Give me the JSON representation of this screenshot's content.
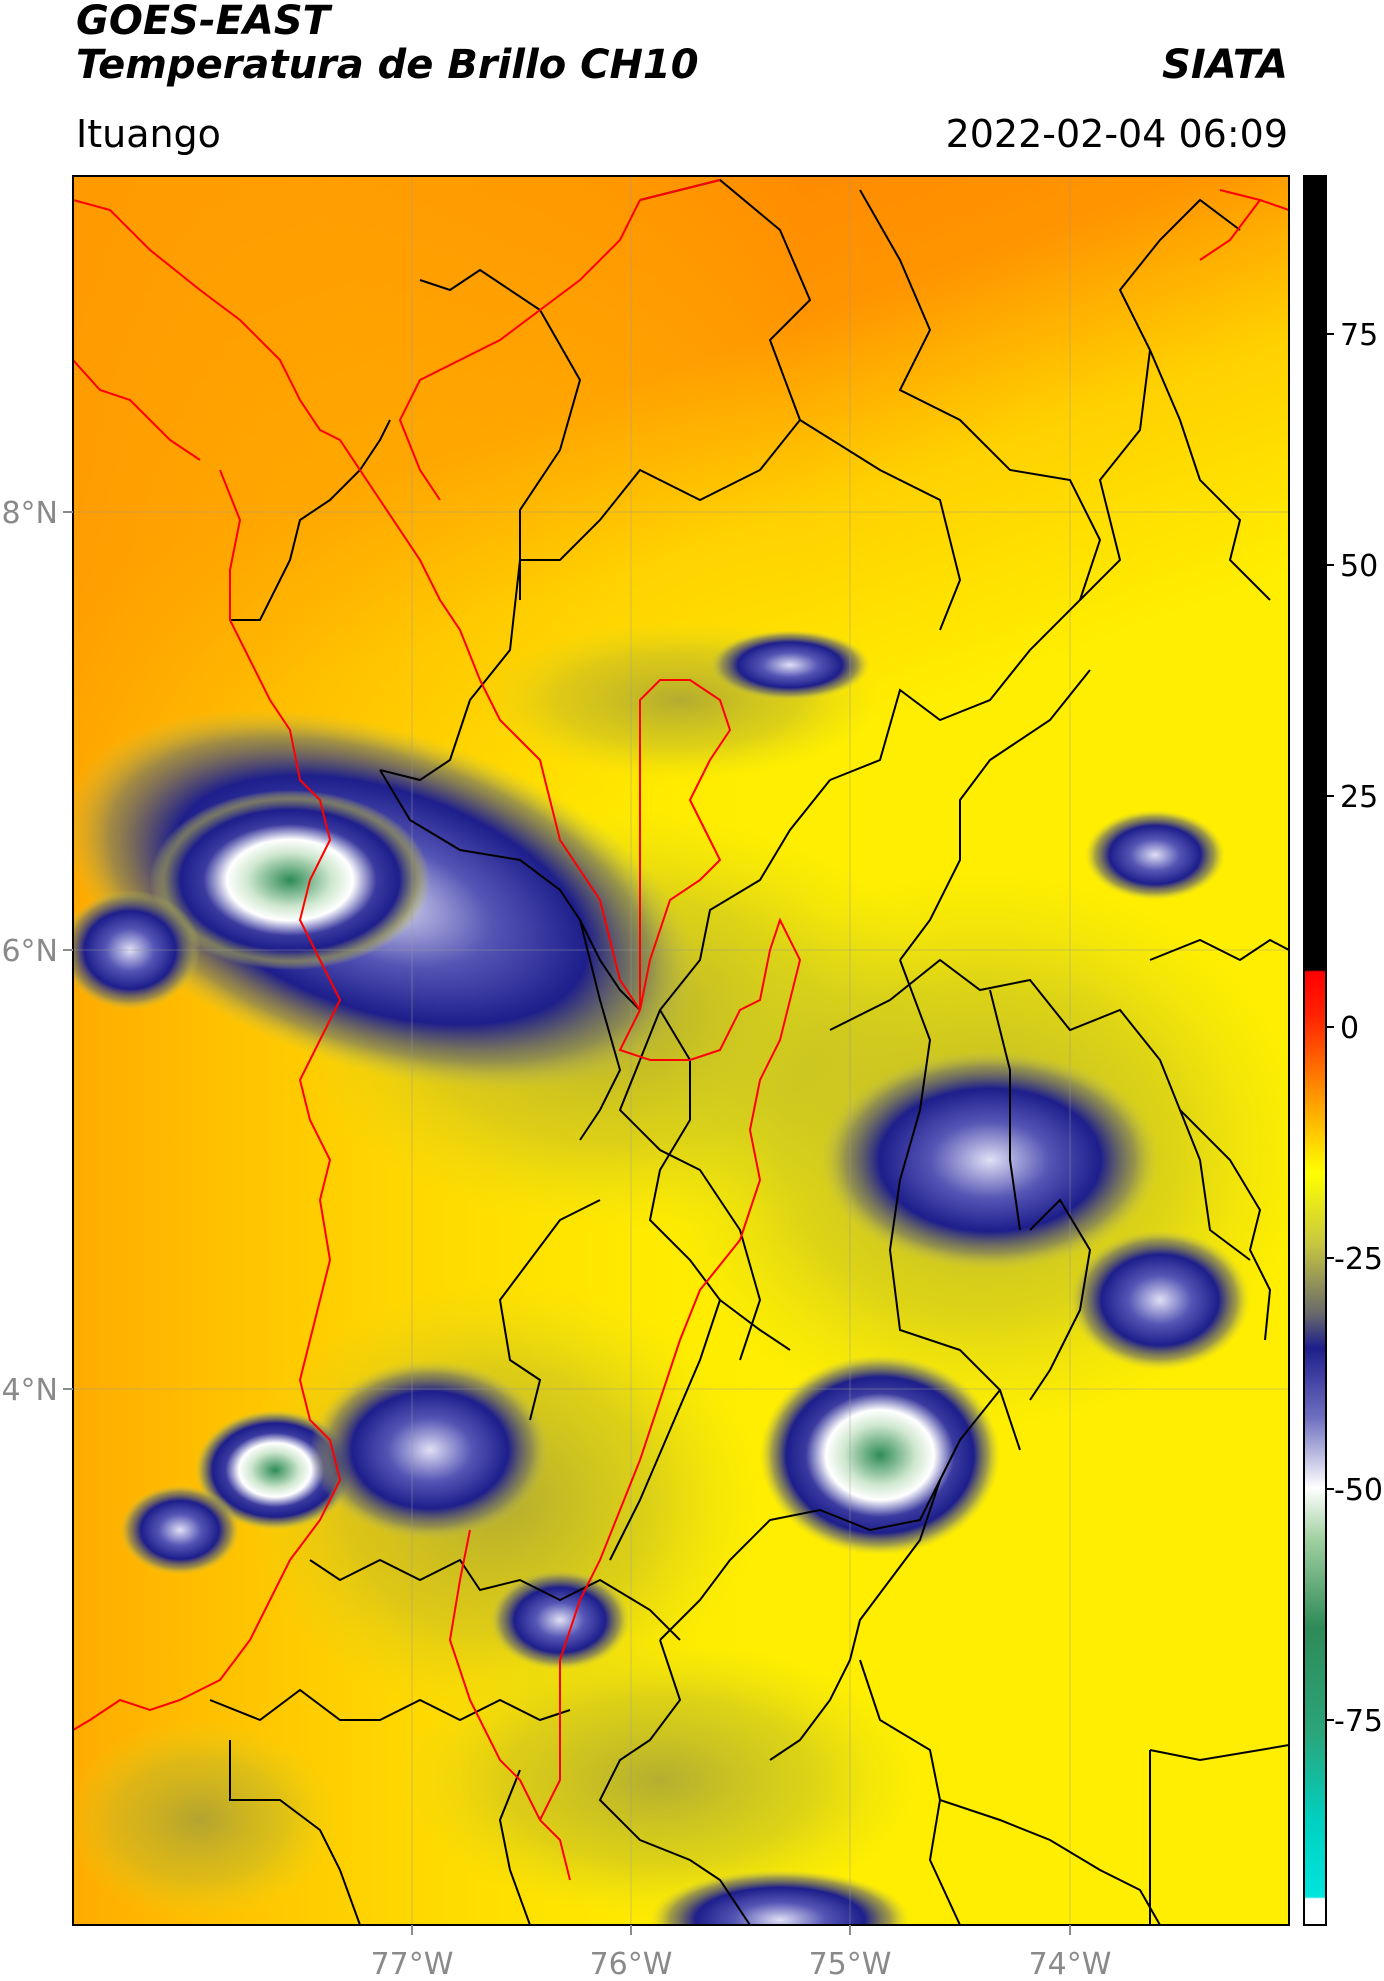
{
  "header": {
    "satellite": "GOES-EAST",
    "product": "Temperatura de Brillo CH10",
    "brand": "SIATA",
    "region": "Ituango",
    "timestamp": "2022-02-04 06:09"
  },
  "map": {
    "lon_labels": [
      "77°W",
      "76°W",
      "75°W",
      "74°W"
    ],
    "lat_labels": [
      "8°N",
      "6°N",
      "4°N"
    ],
    "boundary_colors": {
      "country": "#000000",
      "basin": "#ff0000"
    }
  },
  "colorbar": {
    "labels": [
      "75",
      "50",
      "25",
      "0",
      "-25",
      "-50",
      "-75"
    ],
    "range": [
      -90,
      90
    ],
    "colors": [
      "#ffffff",
      "#00e5dd",
      "#2e8b57",
      "#ffffff",
      "#1e1e8c",
      "#ffff00",
      "#ff8c00",
      "#ff0000",
      "#000000"
    ]
  }
}
